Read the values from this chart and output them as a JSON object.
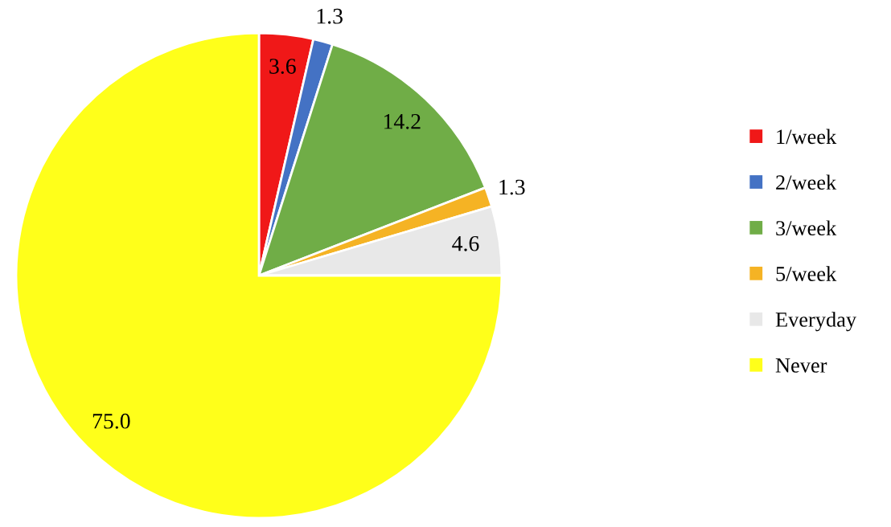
{
  "chart_data": {
    "type": "pie",
    "categories": [
      "1/week",
      "2/week",
      "3/week",
      "5/week",
      "Everyday",
      "Never"
    ],
    "values": [
      3.6,
      1.3,
      14.2,
      1.3,
      4.6,
      75.0
    ],
    "colors": [
      "#f01818",
      "#4472c4",
      "#70ad47",
      "#f5b324",
      "#e8e8e8",
      "#ffff1a"
    ],
    "value_labels": [
      "3.6",
      "1.3",
      "14.2",
      "1.3",
      "4.6",
      "75.0"
    ],
    "legend": "right"
  }
}
